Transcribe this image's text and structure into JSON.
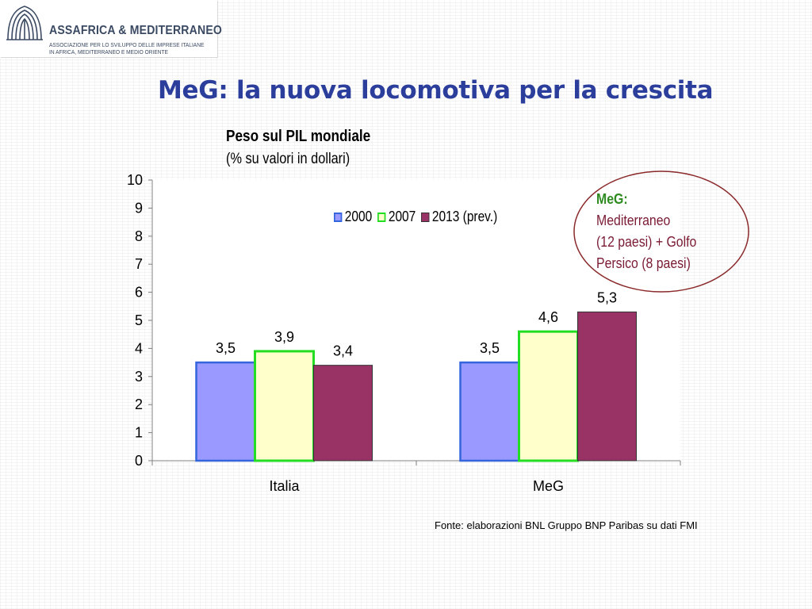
{
  "logo": {
    "name": "ASSAFRICA & MEDITERRANEO",
    "tagline_1": "Associazione per lo sviluppo delle imprese italiane",
    "tagline_2": "in Africa, Mediterraneo e Medio Oriente"
  },
  "slide_title": "MeG: la nuova locomotiva per la crescita",
  "annotation": {
    "heading": "MeG:",
    "line1": "Mediterraneo",
    "line2": "(12 paesi) + Golfo",
    "line3": "Persico (8 paesi)"
  },
  "source": "Fonte: elaborazioni BNL  Gruppo BNP Paribas su dati FMI",
  "colors": {
    "title": "#2c3e9c",
    "series_2000_fill": "#9999ff",
    "series_2000_stroke": "#3366dd",
    "series_2007_fill": "#ffffcc",
    "series_2007_stroke": "#22dd22",
    "series_2013_fill": "#993366",
    "series_2013_stroke": "#333333",
    "annotation_heading": "#2e8b1f",
    "annotation_text": "#7a1a33",
    "ellipse": "#8b2a2a"
  },
  "chart_data": {
    "type": "bar",
    "title": "Peso sul PIL mondiale",
    "subtitle": "(% su valori in dollari)",
    "categories": [
      "Italia",
      "MeG"
    ],
    "series": [
      {
        "name": "2000",
        "values": [
          3.5,
          3.5
        ],
        "labels": [
          "3,5",
          "3,5"
        ]
      },
      {
        "name": "2007",
        "values": [
          3.9,
          4.6
        ],
        "labels": [
          "3,9",
          "4,6"
        ]
      },
      {
        "name": "2013 (prev.)",
        "values": [
          3.4,
          5.3
        ],
        "labels": [
          "3,4",
          "5,3"
        ]
      }
    ],
    "yticks": [
      "0",
      "1",
      "2",
      "3",
      "4",
      "5",
      "6",
      "7",
      "8",
      "9",
      "10"
    ],
    "ylim": [
      0,
      10
    ],
    "grid": false,
    "legend_position": "top-right"
  }
}
